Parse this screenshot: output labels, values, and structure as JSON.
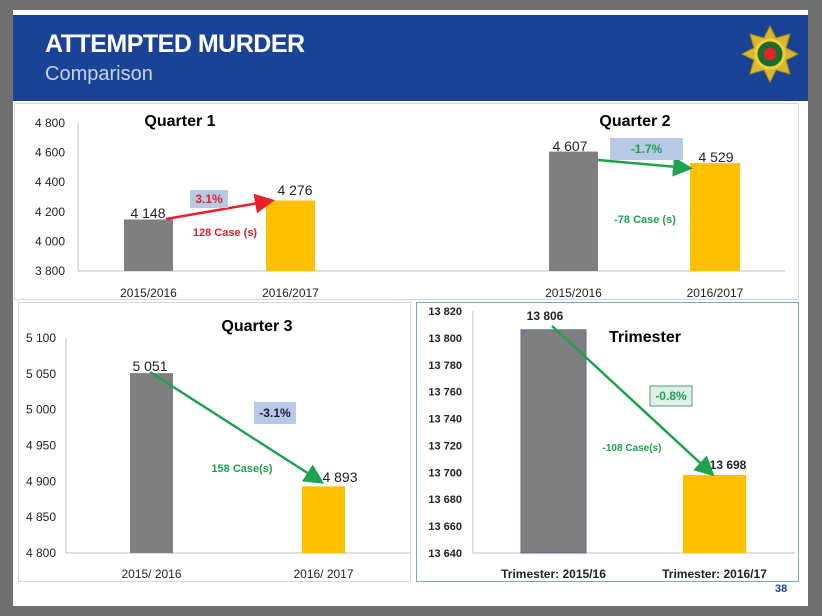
{
  "header": {
    "title": "ATTEMPTED MURDER",
    "subtitle": "Comparison",
    "logo": "saps-star-badge-icon"
  },
  "page_number": "38",
  "colors": {
    "header": "#1a4396",
    "bar_previous": "#7f7f7f",
    "bar_current": "#ffc000",
    "increase": "#e8202a",
    "decrease": "#1fa150",
    "pct_box": "#b8c9e6"
  },
  "chart_data": [
    {
      "type": "bar",
      "title": "Quarter 1",
      "categories": [
        "2015/2016",
        "2016/2017"
      ],
      "values": [
        4148,
        4276
      ],
      "value_labels": [
        "4 148",
        "4 276"
      ],
      "yticks": [
        "4 800",
        "4 600",
        "4 400",
        "4 200",
        "4 000",
        "3 800"
      ],
      "ylim": [
        3800,
        4800
      ],
      "annotation": {
        "percent": "3.1%",
        "cases": "128  Case (s)",
        "direction": "increase"
      }
    },
    {
      "type": "bar",
      "title": "Quarter 2",
      "categories": [
        "2015/2016",
        "2016/2017"
      ],
      "values": [
        4607,
        4529
      ],
      "value_labels": [
        "4 607",
        "4 529"
      ],
      "ylim": [
        3800,
        4800
      ],
      "annotation": {
        "percent": "-1.7%",
        "cases": "-78  Case (s)",
        "direction": "decrease"
      }
    },
    {
      "type": "bar",
      "title": "Quarter 3",
      "categories": [
        "2015/ 2016",
        "2016/ 2017"
      ],
      "values": [
        5051,
        4893
      ],
      "value_labels": [
        "5 051",
        "4 893"
      ],
      "yticks": [
        "5 100",
        "5 050",
        "5 000",
        "4 950",
        "4 900",
        "4 850",
        "4 800"
      ],
      "ylim": [
        4800,
        5100
      ],
      "annotation": {
        "percent": "-3.1%",
        "cases": "158 Case(s)",
        "direction": "decrease"
      }
    },
    {
      "type": "bar",
      "title": "Trimester",
      "categories": [
        "Trimester: 2015/16",
        "Trimester: 2016/17"
      ],
      "values": [
        13806,
        13698
      ],
      "value_labels": [
        "13 806",
        "13 698"
      ],
      "yticks": [
        "13 820",
        "13 800",
        "13 780",
        "13 760",
        "13 740",
        "13 720",
        "13 700",
        "13 680",
        "13 660",
        "13 640"
      ],
      "ylim": [
        13640,
        13820
      ],
      "annotation": {
        "percent": "-0.8%",
        "cases": "-108 Case(s)",
        "direction": "decrease"
      }
    }
  ]
}
